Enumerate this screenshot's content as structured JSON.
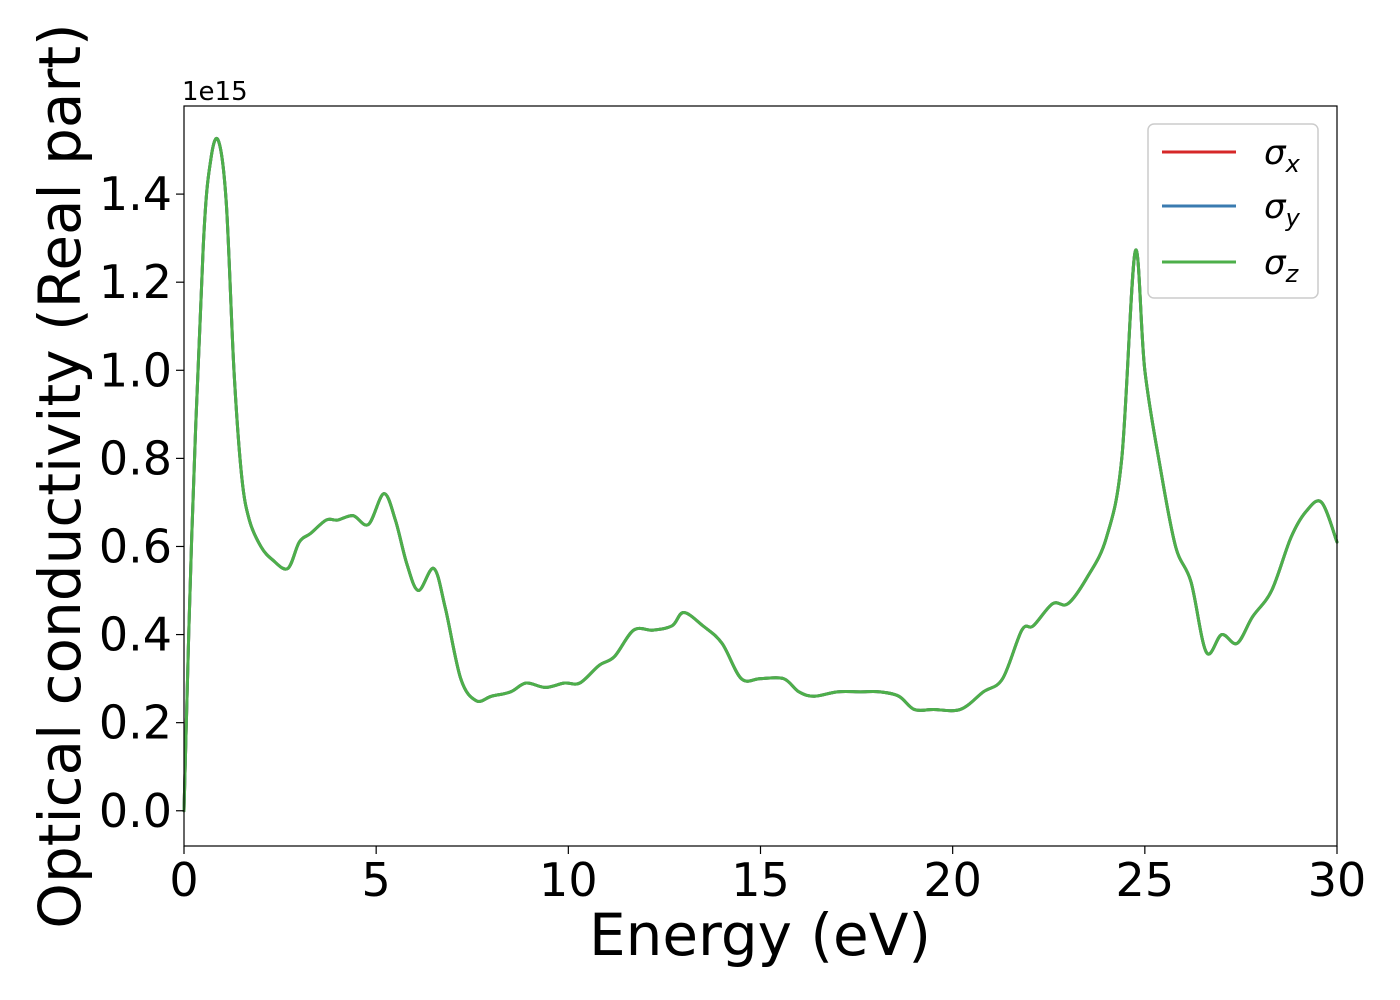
{
  "chart_data": {
    "type": "line",
    "title": "",
    "xlabel": "Energy (eV)",
    "ylabel": "Optical conductivity (Real part)",
    "y_offset_label": "1e15",
    "xlim": [
      0,
      30
    ],
    "ylim": [
      -0.08,
      1.6
    ],
    "x_ticks": [
      {
        "value": 0,
        "label": "0"
      },
      {
        "value": 5,
        "label": "5"
      },
      {
        "value": 10,
        "label": "10"
      },
      {
        "value": 15,
        "label": "15"
      },
      {
        "value": 20,
        "label": "20"
      },
      {
        "value": 25,
        "label": "25"
      },
      {
        "value": 30,
        "label": "30"
      }
    ],
    "y_ticks": [
      {
        "value": 0.0,
        "label": "0.0"
      },
      {
        "value": 0.2,
        "label": "0.2"
      },
      {
        "value": 0.4,
        "label": "0.4"
      },
      {
        "value": 0.6,
        "label": "0.6"
      },
      {
        "value": 0.8,
        "label": "0.8"
      },
      {
        "value": 1.0,
        "label": "1.0"
      },
      {
        "value": 1.2,
        "label": "1.2"
      },
      {
        "value": 1.4,
        "label": "1.4"
      }
    ],
    "grid": false,
    "legend_position": "top-right",
    "x": [
      0,
      0.2,
      0.5,
      0.7,
      0.9,
      1.1,
      1.3,
      1.5,
      1.7,
      2.0,
      2.3,
      2.7,
      3.0,
      3.3,
      3.7,
      4.0,
      4.4,
      4.8,
      5.2,
      5.5,
      5.8,
      6.1,
      6.5,
      6.8,
      7.2,
      7.6,
      8.0,
      8.5,
      8.9,
      9.4,
      9.9,
      10.3,
      10.8,
      11.2,
      11.7,
      12.2,
      12.7,
      13.0,
      13.5,
      14.0,
      14.5,
      15.0,
      15.6,
      16.0,
      16.4,
      17.0,
      17.6,
      18.1,
      18.6,
      19.0,
      19.5,
      20.2,
      20.8,
      21.3,
      21.8,
      22.1,
      22.6,
      23.0,
      23.5,
      24.0,
      24.4,
      24.75,
      25.0,
      25.4,
      25.8,
      26.2,
      26.6,
      27.0,
      27.4,
      27.8,
      28.3,
      28.8,
      29.2,
      29.6,
      30.0
    ],
    "series": [
      {
        "name": "σx",
        "color": "#d62728",
        "values": [
          0.0,
          0.62,
          1.28,
          1.48,
          1.52,
          1.38,
          1.0,
          0.76,
          0.66,
          0.6,
          0.57,
          0.55,
          0.61,
          0.63,
          0.66,
          0.66,
          0.67,
          0.65,
          0.72,
          0.66,
          0.56,
          0.5,
          0.55,
          0.46,
          0.3,
          0.25,
          0.26,
          0.27,
          0.29,
          0.28,
          0.29,
          0.29,
          0.33,
          0.35,
          0.41,
          0.41,
          0.42,
          0.45,
          0.42,
          0.38,
          0.3,
          0.3,
          0.3,
          0.27,
          0.26,
          0.27,
          0.27,
          0.27,
          0.26,
          0.23,
          0.23,
          0.23,
          0.27,
          0.3,
          0.41,
          0.42,
          0.47,
          0.47,
          0.53,
          0.62,
          0.8,
          1.27,
          1.0,
          0.78,
          0.6,
          0.52,
          0.36,
          0.4,
          0.38,
          0.44,
          0.5,
          0.62,
          0.68,
          0.7,
          0.61
        ]
      },
      {
        "name": "σy",
        "color": "#3a7bb0",
        "values": [
          0.0,
          0.62,
          1.28,
          1.48,
          1.52,
          1.38,
          1.0,
          0.76,
          0.66,
          0.6,
          0.57,
          0.55,
          0.61,
          0.63,
          0.66,
          0.66,
          0.67,
          0.65,
          0.72,
          0.66,
          0.56,
          0.5,
          0.55,
          0.46,
          0.3,
          0.25,
          0.26,
          0.27,
          0.29,
          0.28,
          0.29,
          0.29,
          0.33,
          0.35,
          0.41,
          0.41,
          0.42,
          0.45,
          0.42,
          0.38,
          0.3,
          0.3,
          0.3,
          0.27,
          0.26,
          0.27,
          0.27,
          0.27,
          0.26,
          0.23,
          0.23,
          0.23,
          0.27,
          0.3,
          0.41,
          0.42,
          0.47,
          0.47,
          0.53,
          0.62,
          0.8,
          1.27,
          1.0,
          0.78,
          0.6,
          0.52,
          0.36,
          0.4,
          0.38,
          0.44,
          0.5,
          0.62,
          0.68,
          0.7,
          0.61
        ]
      },
      {
        "name": "σz",
        "color": "#4daf4a",
        "values": [
          0.0,
          0.62,
          1.28,
          1.48,
          1.52,
          1.38,
          1.0,
          0.76,
          0.66,
          0.6,
          0.57,
          0.55,
          0.61,
          0.63,
          0.66,
          0.66,
          0.67,
          0.65,
          0.72,
          0.66,
          0.56,
          0.5,
          0.55,
          0.46,
          0.3,
          0.25,
          0.26,
          0.27,
          0.29,
          0.28,
          0.29,
          0.29,
          0.33,
          0.35,
          0.41,
          0.41,
          0.42,
          0.45,
          0.42,
          0.38,
          0.3,
          0.3,
          0.3,
          0.27,
          0.26,
          0.27,
          0.27,
          0.27,
          0.26,
          0.23,
          0.23,
          0.23,
          0.27,
          0.3,
          0.41,
          0.42,
          0.47,
          0.47,
          0.53,
          0.62,
          0.8,
          1.27,
          1.0,
          0.78,
          0.6,
          0.52,
          0.36,
          0.4,
          0.38,
          0.44,
          0.5,
          0.62,
          0.68,
          0.7,
          0.61
        ]
      }
    ],
    "legend": [
      {
        "symbol": "σ",
        "subscript": "x",
        "color": "#d62728"
      },
      {
        "symbol": "σ",
        "subscript": "y",
        "color": "#3a7bb0"
      },
      {
        "symbol": "σ",
        "subscript": "z",
        "color": "#4daf4a"
      }
    ]
  }
}
